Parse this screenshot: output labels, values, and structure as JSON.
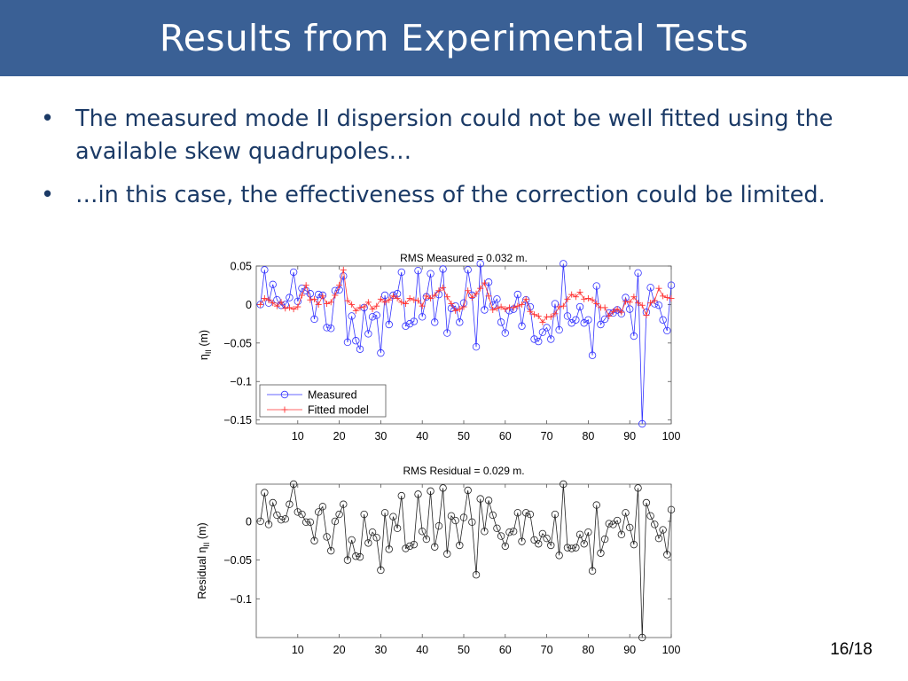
{
  "slide": {
    "title": "Results from Experimental Tests",
    "bullets": [
      "The measured mode II dispersion could not be well fitted using the available skew quadrupoles…",
      "…in this case, the effectiveness of the correction could be limited."
    ],
    "bullet_symbol": "•",
    "page_number": "16/18",
    "colors": {
      "title_bar": "#3a6095",
      "bullet_text": "#1b3a66"
    }
  },
  "chart_data": [
    {
      "type": "line",
      "title": "RMS Measured = 0.032 m.",
      "xlabel": "",
      "ylabel": "η_II (m)",
      "ylabel_parts": {
        "main": "η",
        "sub": "II",
        "unit": "(m)"
      },
      "xlim": [
        0,
        100
      ],
      "ylim": [
        -0.155,
        0.05
      ],
      "xticks": [
        10,
        20,
        30,
        40,
        50,
        60,
        70,
        80,
        90,
        100
      ],
      "xtick_labels": [
        "10",
        "20",
        "30",
        "40",
        "50",
        "60",
        "70",
        "80",
        "90",
        "100"
      ],
      "yticks": [
        0.05,
        0,
        -0.05,
        -0.1,
        -0.15
      ],
      "ytick_labels": [
        "0.05",
        "0",
        "−0.05",
        "−0.1",
        "−0.15"
      ],
      "grid": false,
      "legend": {
        "position": "bottom-left",
        "entries": [
          "Measured",
          "Fitted model"
        ]
      },
      "x": [
        1,
        2,
        3,
        4,
        5,
        6,
        7,
        8,
        9,
        10,
        11,
        12,
        13,
        14,
        15,
        16,
        17,
        18,
        19,
        20,
        21,
        22,
        23,
        24,
        25,
        26,
        27,
        28,
        29,
        30,
        31,
        32,
        33,
        34,
        35,
        36,
        37,
        38,
        39,
        40,
        41,
        42,
        43,
        44,
        45,
        46,
        47,
        48,
        49,
        50,
        51,
        52,
        53,
        54,
        55,
        56,
        57,
        58,
        59,
        60,
        61,
        62,
        63,
        64,
        65,
        66,
        67,
        68,
        69,
        70,
        71,
        72,
        73,
        74,
        75,
        76,
        77,
        78,
        79,
        80,
        81,
        82,
        83,
        84,
        85,
        86,
        87,
        88,
        89,
        90,
        91,
        92,
        93,
        94,
        95,
        96,
        97,
        98,
        99,
        100
      ],
      "series": [
        {
          "name": "Measured",
          "color": "#3333ff",
          "marker": "circle",
          "values": [
            0.0,
            0.045,
            0.002,
            0.026,
            0.006,
            -0.001,
            0.0,
            0.009,
            0.042,
            0.004,
            0.021,
            0.018,
            0.014,
            -0.019,
            0.013,
            0.012,
            -0.03,
            -0.031,
            0.018,
            0.019,
            0.037,
            -0.049,
            -0.015,
            -0.047,
            -0.058,
            -0.004,
            -0.038,
            -0.016,
            -0.014,
            -0.063,
            0.012,
            -0.026,
            0.012,
            0.014,
            0.042,
            -0.028,
            -0.025,
            -0.022,
            0.044,
            -0.016,
            0.01,
            0.04,
            -0.023,
            0.013,
            0.046,
            -0.037,
            -0.005,
            -0.002,
            -0.023,
            0.002,
            0.045,
            0.012,
            -0.055,
            0.053,
            -0.007,
            0.029,
            -0.001,
            0.007,
            -0.023,
            -0.037,
            -0.008,
            -0.006,
            0.013,
            -0.028,
            0.006,
            -0.003,
            -0.045,
            -0.048,
            -0.036,
            -0.03,
            -0.045,
            0.001,
            -0.033,
            0.053,
            -0.015,
            -0.024,
            -0.02,
            -0.003,
            -0.024,
            -0.02,
            -0.066,
            0.024,
            -0.026,
            -0.019,
            -0.011,
            -0.011,
            -0.007,
            -0.012,
            0.009,
            -0.006,
            -0.041,
            0.041,
            -0.155,
            -0.01,
            0.022,
            0.001,
            -0.001,
            -0.02,
            -0.034,
            0.025
          ]
        },
        {
          "name": "Fitted model",
          "color": "#ff3333",
          "marker": "plus",
          "values": [
            0.0,
            0.008,
            0.006,
            0.002,
            -0.002,
            0.003,
            -0.005,
            -0.004,
            -0.006,
            -0.003,
            0.012,
            0.025,
            0.006,
            0.007,
            0.0,
            0.011,
            0.001,
            0.003,
            0.012,
            0.025,
            0.045,
            0.005,
            0.0,
            -0.008,
            -0.004,
            -0.003,
            0.003,
            -0.006,
            -0.002,
            0.007,
            0.003,
            0.006,
            0.011,
            0.008,
            0.003,
            0.001,
            0.008,
            0.006,
            0.005,
            -0.002,
            0.011,
            0.008,
            0.012,
            0.018,
            0.022,
            0.01,
            0.001,
            -0.008,
            -0.006,
            -0.003,
            0.018,
            0.009,
            0.014,
            0.021,
            0.028,
            0.011,
            -0.007,
            -0.005,
            -0.003,
            -0.006,
            -0.004,
            -0.004,
            -0.002,
            0.0,
            0.007,
            -0.009,
            -0.013,
            -0.015,
            -0.023,
            -0.016,
            -0.016,
            -0.012,
            -0.003,
            -0.002,
            0.007,
            0.013,
            0.01,
            0.016,
            0.007,
            0.008,
            0.006,
            0.001,
            -0.004,
            -0.004,
            -0.015,
            -0.009,
            -0.006,
            -0.01,
            0.004,
            0.003,
            0.01,
            0.002,
            -0.001,
            -0.014,
            0.002,
            0.005,
            0.021,
            0.011,
            0.009,
            0.008
          ]
        }
      ]
    },
    {
      "type": "line",
      "title": "RMS Residual = 0.029 m.",
      "xlabel": "",
      "ylabel": "Residual η_II (m)",
      "ylabel_parts": {
        "pre": "Residual ",
        "main": "η",
        "sub": "II",
        "unit": "(m)"
      },
      "xlim": [
        0,
        100
      ],
      "ylim": [
        -0.15,
        0.048
      ],
      "xticks": [
        10,
        20,
        30,
        40,
        50,
        60,
        70,
        80,
        90,
        100
      ],
      "xtick_labels": [
        "10",
        "20",
        "30",
        "40",
        "50",
        "60",
        "70",
        "80",
        "90",
        "100"
      ],
      "yticks": [
        0,
        -0.05,
        -0.1
      ],
      "ytick_labels": [
        "0",
        "−0.05",
        "−0.1"
      ],
      "grid": false,
      "x": [
        1,
        2,
        3,
        4,
        5,
        6,
        7,
        8,
        9,
        10,
        11,
        12,
        13,
        14,
        15,
        16,
        17,
        18,
        19,
        20,
        21,
        22,
        23,
        24,
        25,
        26,
        27,
        28,
        29,
        30,
        31,
        32,
        33,
        34,
        35,
        36,
        37,
        38,
        39,
        40,
        41,
        42,
        43,
        44,
        45,
        46,
        47,
        48,
        49,
        50,
        51,
        52,
        53,
        54,
        55,
        56,
        57,
        58,
        59,
        60,
        61,
        62,
        63,
        64,
        65,
        66,
        67,
        68,
        69,
        70,
        71,
        72,
        73,
        74,
        75,
        76,
        77,
        78,
        79,
        80,
        81,
        82,
        83,
        84,
        85,
        86,
        87,
        88,
        89,
        90,
        91,
        92,
        93,
        94,
        95,
        96,
        97,
        98,
        99,
        100
      ],
      "series": [
        {
          "name": "",
          "color": "#222222",
          "marker": "circle",
          "values": [
            0.0,
            0.037,
            -0.004,
            0.024,
            0.008,
            0.002,
            0.003,
            0.022,
            0.048,
            0.012,
            0.009,
            -0.001,
            -0.001,
            -0.025,
            0.012,
            0.019,
            -0.02,
            -0.038,
            0.0,
            0.009,
            0.022,
            -0.05,
            -0.024,
            -0.045,
            -0.046,
            0.009,
            -0.028,
            -0.014,
            -0.021,
            -0.063,
            0.011,
            -0.036,
            0.006,
            -0.009,
            0.033,
            -0.035,
            -0.032,
            -0.03,
            0.035,
            -0.013,
            -0.023,
            0.039,
            -0.033,
            -0.006,
            0.043,
            -0.042,
            0.007,
            0.001,
            -0.031,
            0.005,
            0.04,
            -0.001,
            -0.069,
            0.029,
            -0.013,
            0.027,
            0.008,
            -0.009,
            -0.019,
            -0.032,
            -0.014,
            -0.013,
            0.011,
            -0.026,
            0.011,
            0.009,
            -0.024,
            -0.029,
            -0.016,
            -0.022,
            -0.031,
            0.009,
            -0.044,
            0.048,
            -0.034,
            -0.035,
            -0.034,
            -0.017,
            -0.029,
            -0.014,
            -0.064,
            0.021,
            -0.041,
            -0.023,
            -0.003,
            -0.004,
            0.001,
            -0.017,
            0.011,
            -0.008,
            -0.03,
            0.043,
            -0.15,
            0.024,
            0.007,
            -0.004,
            -0.022,
            -0.011,
            -0.043,
            0.015
          ]
        }
      ]
    }
  ]
}
